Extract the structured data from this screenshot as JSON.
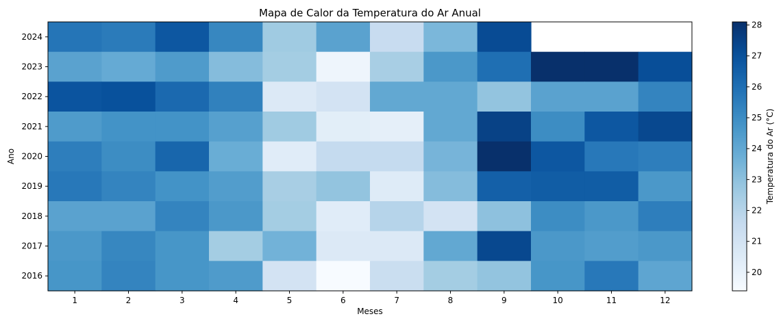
{
  "chart_data": {
    "type": "heatmap",
    "title": "Mapa de Calor da Temperatura do Ar Anual",
    "xlabel": "Meses",
    "ylabel": "Ano",
    "x": [
      "1",
      "2",
      "3",
      "4",
      "5",
      "6",
      "7",
      "8",
      "9",
      "10",
      "11",
      "12"
    ],
    "y": [
      "2024",
      "2023",
      "2022",
      "2021",
      "2020",
      "2019",
      "2018",
      "2017",
      "2016"
    ],
    "values": [
      [
        25.8,
        25.6,
        26.8,
        25.2,
        22.6,
        24.2,
        21.5,
        23.4,
        27.2,
        null,
        null,
        null
      ],
      [
        24.2,
        23.9,
        24.5,
        23.2,
        22.5,
        19.8,
        22.4,
        24.6,
        26.0,
        28.1,
        28.1,
        27.1
      ],
      [
        26.9,
        27.0,
        26.2,
        25.4,
        20.6,
        21.0,
        24.0,
        24.0,
        22.9,
        24.2,
        24.2,
        25.3
      ],
      [
        24.5,
        24.8,
        24.8,
        24.3,
        22.6,
        20.3,
        20.2,
        24.0,
        27.5,
        25.0,
        26.8,
        27.3
      ],
      [
        25.5,
        25.0,
        26.3,
        23.8,
        20.4,
        21.6,
        21.6,
        23.5,
        28.1,
        26.8,
        25.7,
        25.5
      ],
      [
        25.7,
        25.3,
        24.8,
        24.4,
        22.4,
        22.9,
        20.5,
        23.2,
        26.5,
        26.6,
        26.6,
        24.6
      ],
      [
        24.2,
        24.2,
        25.3,
        24.6,
        22.5,
        20.4,
        22.0,
        21.0,
        23.0,
        25.0,
        24.6,
        25.5
      ],
      [
        24.6,
        25.2,
        24.7,
        22.5,
        23.6,
        20.6,
        20.6,
        24.0,
        27.3,
        24.6,
        24.4,
        24.6
      ],
      [
        24.7,
        25.3,
        24.7,
        24.5,
        21.0,
        19.4,
        21.4,
        22.5,
        22.9,
        24.7,
        25.7,
        24.1
      ]
    ],
    "colorbar": {
      "label": "Temperatura do Ar (°C)",
      "min": 19.4,
      "max": 28.1,
      "ticks": [
        20,
        21,
        22,
        23,
        24,
        25,
        26,
        27,
        28
      ],
      "colormap": "Blues"
    },
    "grid": false
  }
}
